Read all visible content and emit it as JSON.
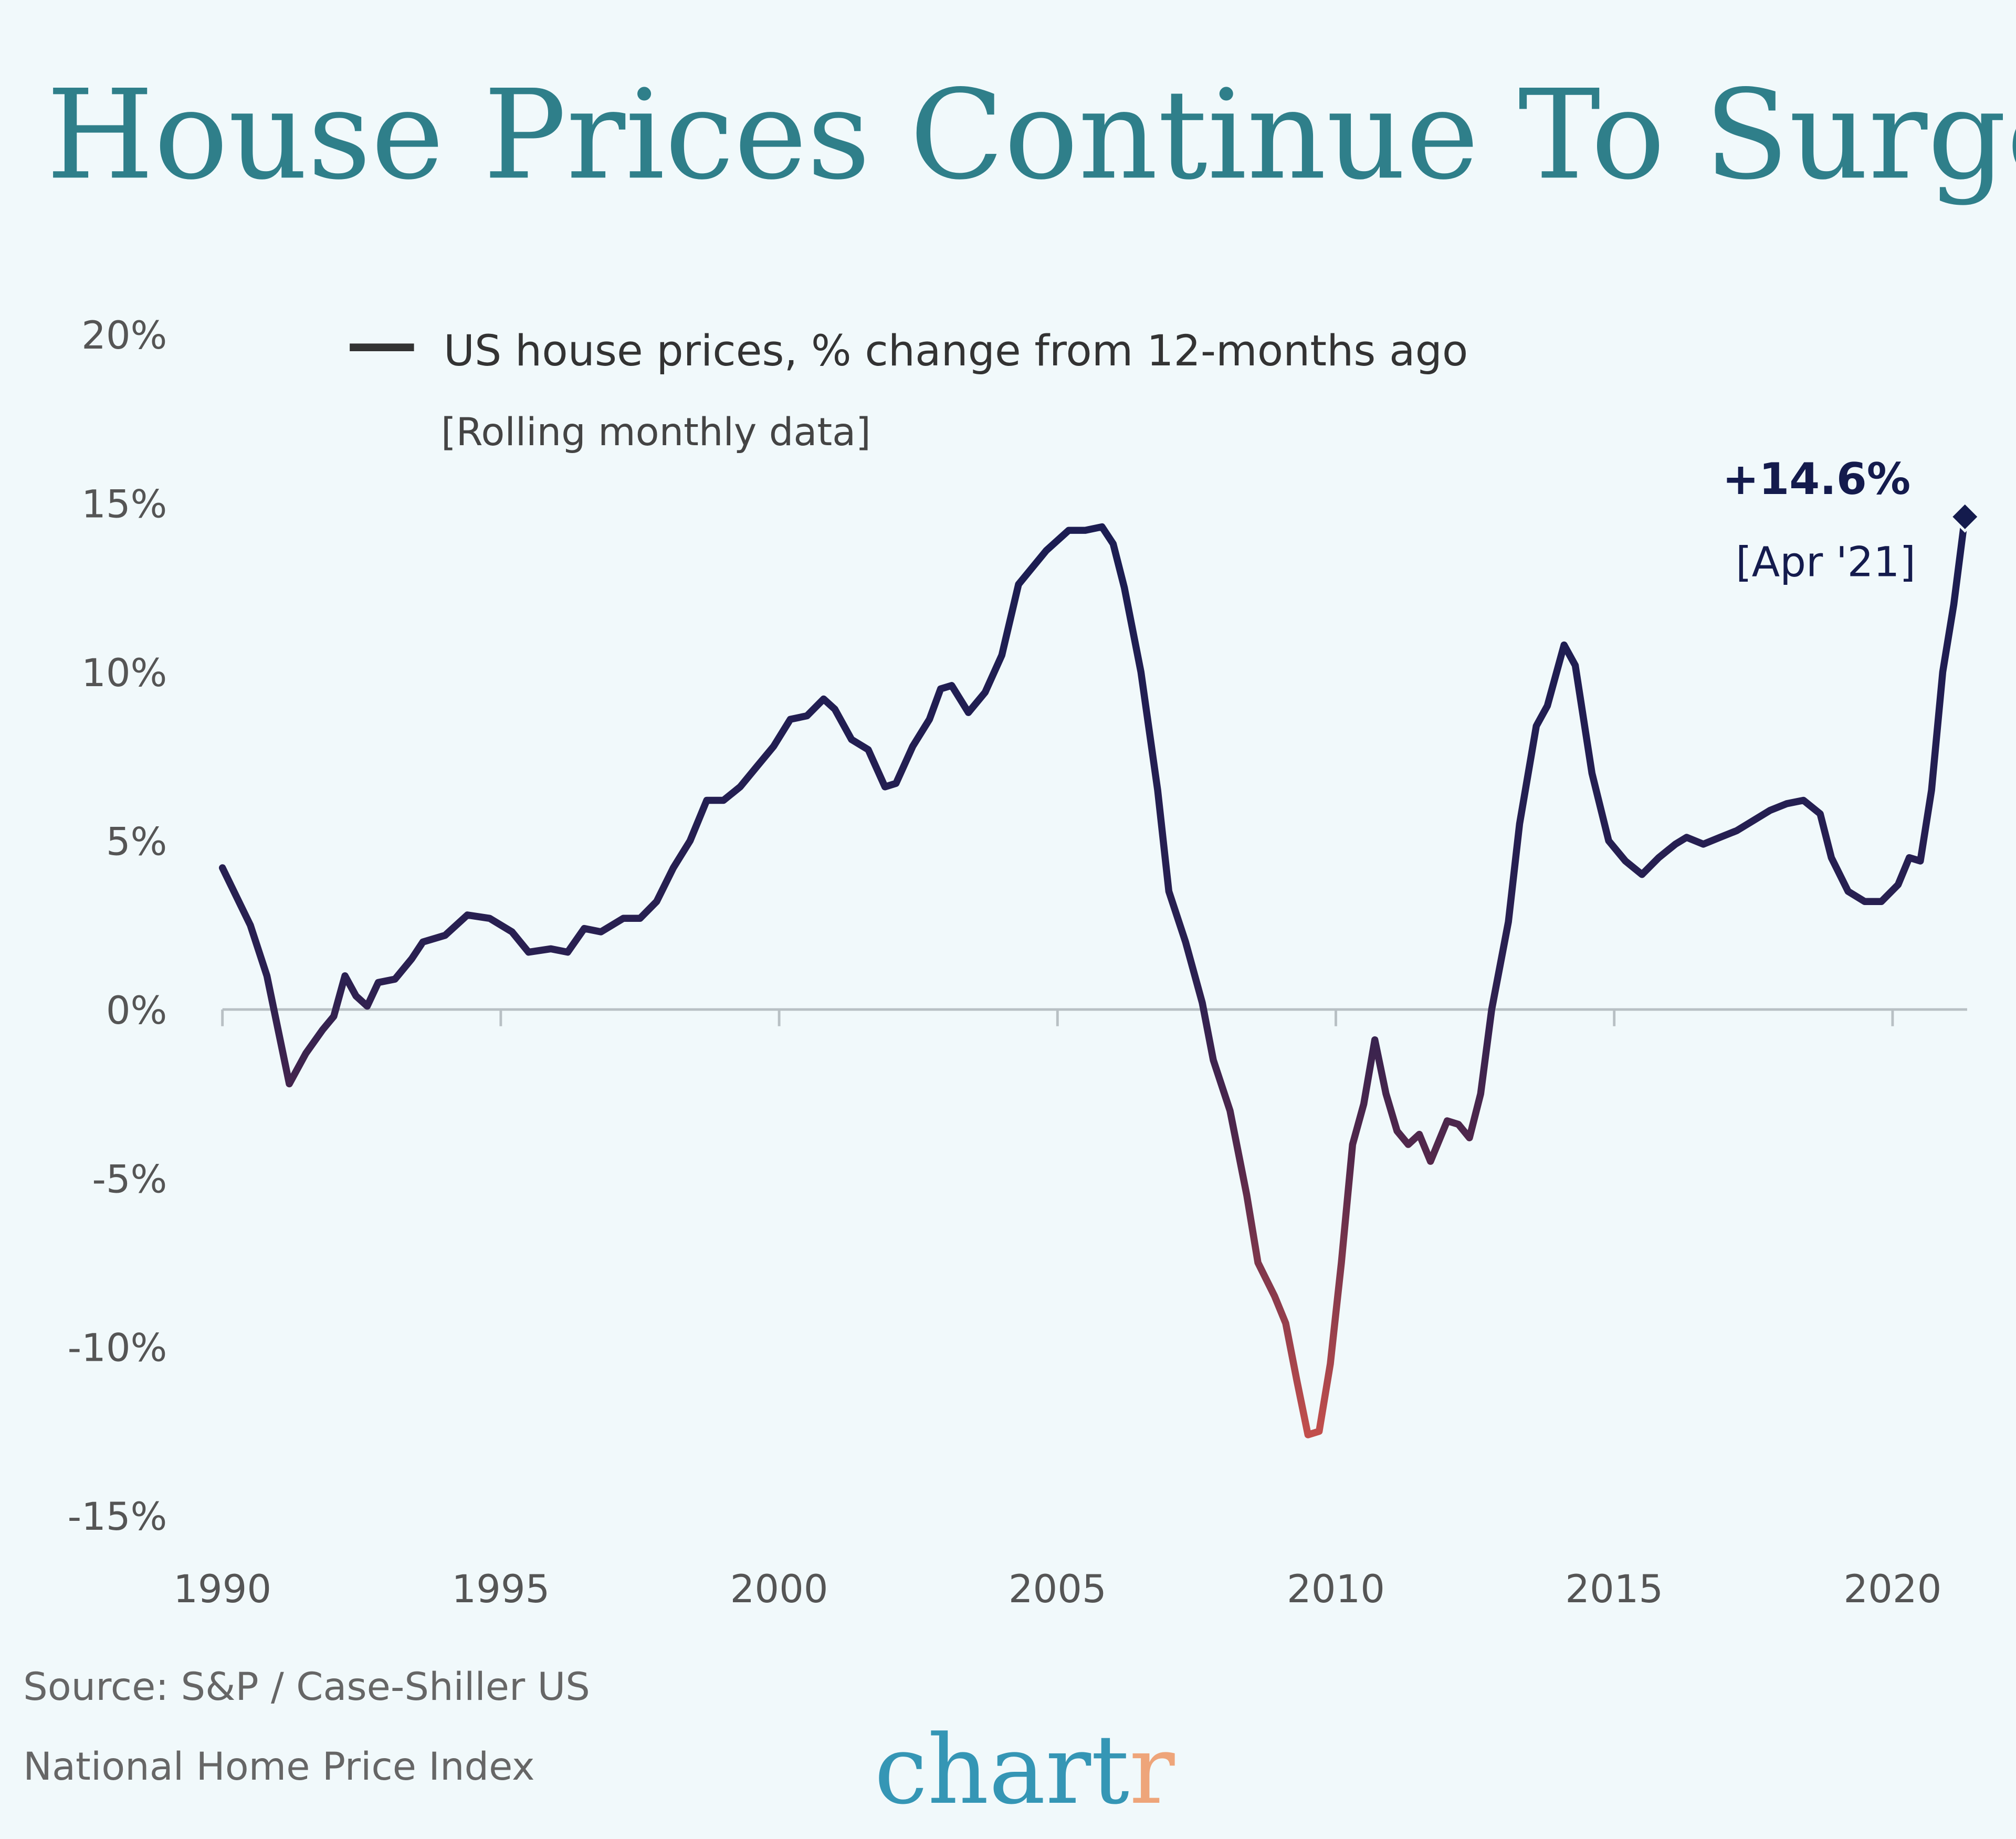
{
  "chart_data": {
    "type": "line",
    "title": "House Prices Continue To Surge",
    "xlabel": "",
    "ylabel": "",
    "xlim": [
      1990,
      2021.3
    ],
    "ylim": [
      -15,
      20
    ],
    "x_ticks": [
      "1990",
      "1995",
      "2000",
      "2005",
      "2010",
      "2015",
      "2020"
    ],
    "y_ticks": [
      "-15%",
      "-10%",
      "-5%",
      "0%",
      "5%",
      "10%",
      "15%",
      "20%"
    ],
    "grid": false,
    "legend_position": "top-left",
    "legend": {
      "label": "US house prices, % change from 12-months ago",
      "sublabel": "[Rolling monthly data]"
    },
    "series": [
      {
        "name": "US house prices, % change from 12-months ago",
        "color_top": "#1b1d52",
        "color_bottom": "#c24f4c",
        "x": [
          1990.0,
          1990.5,
          1990.8,
          1991.2,
          1991.5,
          1991.8,
          1992.0,
          1992.2,
          1992.4,
          1992.6,
          1992.8,
          1993.1,
          1993.4,
          1993.6,
          1994.0,
          1994.4,
          1994.8,
          1995.2,
          1995.5,
          1995.9,
          1996.2,
          1996.5,
          1996.8,
          1997.2,
          1997.5,
          1997.8,
          1998.1,
          1998.4,
          1998.7,
          1999.0,
          1999.3,
          1999.6,
          1999.9,
          2000.2,
          2000.5,
          2000.8,
          2001.0,
          2001.3,
          2001.6,
          2001.9,
          2002.1,
          2002.4,
          2002.7,
          2002.9,
          2003.1,
          2003.4,
          2003.7,
          2004.0,
          2004.3,
          2004.5,
          2004.8,
          2005.2,
          2005.5,
          2005.8,
          2006.0,
          2006.2,
          2006.5,
          2006.8,
          2007.0,
          2007.3,
          2007.6,
          2007.8,
          2008.1,
          2008.4,
          2008.6,
          2008.9,
          2009.1,
          2009.3,
          2009.5,
          2009.7,
          2009.9,
          2010.1,
          2010.3,
          2010.5,
          2010.7,
          2010.9,
          2011.1,
          2011.3,
          2011.5,
          2011.7,
          2012.0,
          2012.2,
          2012.4,
          2012.6,
          2012.8,
          2013.1,
          2013.3,
          2013.6,
          2013.8,
          2014.1,
          2014.3,
          2014.6,
          2014.9,
          2015.2,
          2015.5,
          2015.8,
          2016.1,
          2016.3,
          2016.6,
          2016.9,
          2017.2,
          2017.5,
          2017.8,
          2018.1,
          2018.4,
          2018.7,
          2018.9,
          2019.2,
          2019.5,
          2019.8,
          2020.1,
          2020.3,
          2020.5,
          2020.7,
          2020.9,
          2021.1,
          2021.3
        ],
        "y": [
          4.2,
          2.5,
          1.0,
          -2.2,
          -1.3,
          -0.6,
          -0.2,
          1.0,
          0.4,
          0.1,
          0.8,
          0.9,
          1.5,
          2.0,
          2.2,
          2.8,
          2.7,
          2.3,
          1.7,
          1.8,
          1.7,
          2.4,
          2.3,
          2.7,
          2.7,
          3.2,
          4.2,
          5.0,
          6.2,
          6.2,
          6.6,
          7.2,
          7.8,
          8.6,
          8.7,
          9.2,
          8.9,
          8.0,
          7.7,
          6.6,
          6.7,
          7.8,
          8.6,
          9.5,
          9.6,
          8.8,
          9.4,
          10.5,
          12.6,
          13.0,
          13.6,
          14.2,
          14.2,
          14.3,
          13.8,
          12.5,
          10.0,
          6.5,
          3.5,
          2.0,
          0.2,
          -1.5,
          -3.0,
          -5.5,
          -7.5,
          -8.5,
          -9.3,
          -11.0,
          -12.6,
          -12.5,
          -10.5,
          -7.5,
          -4.0,
          -2.8,
          -0.9,
          -2.5,
          -3.6,
          -4.0,
          -3.7,
          -4.5,
          -3.3,
          -3.4,
          -3.8,
          -2.5,
          0.0,
          2.6,
          5.5,
          8.4,
          9.0,
          10.8,
          10.2,
          7.0,
          5.0,
          4.4,
          4.0,
          4.5,
          4.9,
          5.1,
          4.9,
          5.1,
          5.3,
          5.6,
          5.9,
          6.1,
          6.2,
          5.8,
          4.5,
          3.5,
          3.2,
          3.2,
          3.7,
          4.5,
          4.4,
          6.5,
          10.0,
          12.0,
          14.6
        ]
      }
    ],
    "annotations": [
      {
        "label": "+14.6%",
        "sublabel": "[Apr '21]",
        "x": 2021.3,
        "y": 14.6,
        "marker": "diamond"
      }
    ]
  },
  "footer": {
    "source_line1": "Source: S&P / Case-Shiller US",
    "source_line2": "National Home Price Index",
    "logo": "chartr",
    "logo_color": "#3596b5",
    "logo_accent_color": "#eea57a"
  },
  "colors": {
    "background": "#f1f9fb",
    "title": "#2f7f8a",
    "axis": "#b8c0c4"
  }
}
